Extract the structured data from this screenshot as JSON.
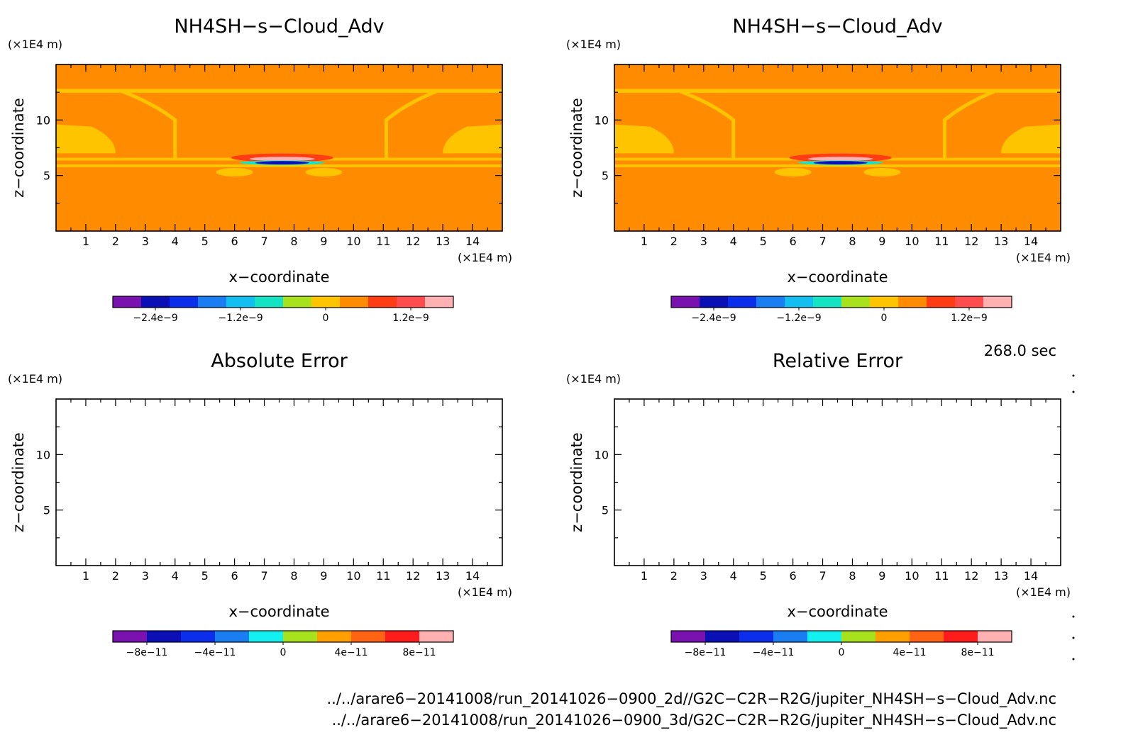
{
  "chart_data": [
    {
      "type": "heatmap",
      "title": "NH4SH−s−Cloud_Adv",
      "xlabel": "x−coordinate",
      "ylabel": "z−coordinate",
      "x_unit": "(×1E4 m)",
      "y_unit": "(×1E4 m)",
      "xlim": [
        0,
        15
      ],
      "ylim": [
        0,
        15
      ],
      "x_ticks": [
        "1",
        "2",
        "3",
        "4",
        "5",
        "6",
        "7",
        "8",
        "9",
        "10",
        "11",
        "12",
        "13",
        "14"
      ],
      "y_ticks": [
        "5",
        "10"
      ],
      "field": "filled",
      "colorbar": {
        "colors": [
          "#7a12b0",
          "#0a10b4",
          "#0a2eea",
          "#1a7ef2",
          "#13bff0",
          "#14e4c4",
          "#a8e21c",
          "#ffc400",
          "#ff8c00",
          "#ff3c14",
          "#ff4c4c",
          "#ffb0b0"
        ],
        "tick_labels": [
          "−2.4e−9",
          "−1.2e−9",
          "0",
          "1.2e−9"
        ]
      }
    },
    {
      "type": "heatmap",
      "title": "NH4SH−s−Cloud_Adv",
      "xlabel": "x−coordinate",
      "ylabel": "z−coordinate",
      "x_unit": "(×1E4 m)",
      "y_unit": "(×1E4 m)",
      "xlim": [
        0,
        15
      ],
      "ylim": [
        0,
        15
      ],
      "x_ticks": [
        "1",
        "2",
        "3",
        "4",
        "5",
        "6",
        "7",
        "8",
        "9",
        "10",
        "11",
        "12",
        "13",
        "14"
      ],
      "y_ticks": [
        "5",
        "10"
      ],
      "field": "filled",
      "colorbar": {
        "colors": [
          "#7a12b0",
          "#0a10b4",
          "#0a2eea",
          "#1a7ef2",
          "#13bff0",
          "#14e4c4",
          "#a8e21c",
          "#ffc400",
          "#ff8c00",
          "#ff3c14",
          "#ff4c4c",
          "#ffb0b0"
        ],
        "tick_labels": [
          "−2.4e−9",
          "−1.2e−9",
          "0",
          "1.2e−9"
        ]
      }
    },
    {
      "type": "heatmap",
      "title": "Absolute Error",
      "xlabel": "x−coordinate",
      "ylabel": "z−coordinate",
      "x_unit": "(×1E4 m)",
      "y_unit": "(×1E4 m)",
      "xlim": [
        0,
        15
      ],
      "ylim": [
        0,
        15
      ],
      "x_ticks": [
        "1",
        "2",
        "3",
        "4",
        "5",
        "6",
        "7",
        "8",
        "9",
        "10",
        "11",
        "12",
        "13",
        "14"
      ],
      "y_ticks": [
        "5",
        "10"
      ],
      "field": "empty",
      "colorbar": {
        "colors": [
          "#7a12b0",
          "#0a10b4",
          "#0a2eea",
          "#1a7ef2",
          "#13f0f0",
          "#a8e21c",
          "#ffa000",
          "#ff6414",
          "#ff1c1c",
          "#ffb0b0"
        ],
        "tick_labels": [
          "−8e−11",
          "−4e−11",
          "0",
          "4e−11",
          "8e−11"
        ]
      }
    },
    {
      "type": "heatmap",
      "title": "Relative Error",
      "xlabel": "x−coordinate",
      "ylabel": "z−coordinate",
      "x_unit": "(×1E4 m)",
      "y_unit": "(×1E4 m)",
      "xlim": [
        0,
        15
      ],
      "ylim": [
        0,
        15
      ],
      "x_ticks": [
        "1",
        "2",
        "3",
        "4",
        "5",
        "6",
        "7",
        "8",
        "9",
        "10",
        "11",
        "12",
        "13",
        "14"
      ],
      "y_ticks": [
        "5",
        "10"
      ],
      "field": "empty",
      "colorbar": {
        "colors": [
          "#7a12b0",
          "#0a10b4",
          "#0a2eea",
          "#1a7ef2",
          "#13f0f0",
          "#a8e21c",
          "#ffa000",
          "#ff6414",
          "#ff1c1c",
          "#ffb0b0"
        ],
        "tick_labels": [
          "−8e−11",
          "−4e−11",
          "0",
          "4e−11",
          "8e−11"
        ]
      }
    }
  ],
  "time_label": "268.0 sec",
  "files": [
    "../../arare6−20141008/run_20141026−0900_2d//G2C−C2R−R2G/jupiter_NH4SH−s−Cloud_Adv.nc",
    "../../arare6−20141008/run_20141026−0900_3d/G2C−C2R−R2G/jupiter_NH4SH−s−Cloud_Adv.nc"
  ],
  "field_colors": {
    "background": "#ff8c00",
    "band": "#ffc400",
    "positive": "#ff3c14",
    "peak": "#ffb0b0",
    "negative": "#14e4c4",
    "core": "#0a10b4"
  }
}
